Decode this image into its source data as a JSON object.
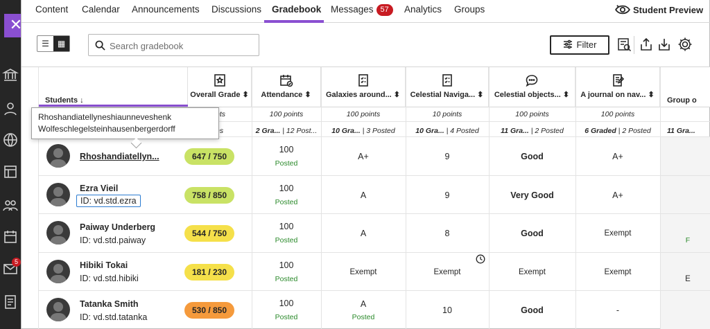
{
  "nav": {
    "tabs": [
      {
        "label": "Content"
      },
      {
        "label": "Calendar"
      },
      {
        "label": "Announcements"
      },
      {
        "label": "Discussions"
      },
      {
        "label": "Gradebook"
      },
      {
        "label": "Messages",
        "badge": "57"
      },
      {
        "label": "Analytics"
      },
      {
        "label": "Groups"
      }
    ],
    "student_preview": "Student Preview"
  },
  "rail": {
    "mail_badge": "5"
  },
  "toolbar": {
    "search_placeholder": "Search gradebook",
    "filter_label": "Filter"
  },
  "columns": [
    {
      "label": "Students ↓",
      "icon": "none"
    },
    {
      "label": "Overall Grade ⬍",
      "icon": "overall-grade-icon",
      "points": "points",
      "stats": "items"
    },
    {
      "label": "Attendance ⬍",
      "icon": "attendance-calendar-icon",
      "points": "100 points",
      "stats_a": "2 Gra...",
      "stats_b": "| 12 Post..."
    },
    {
      "label": "Galaxies around... ⬍",
      "icon": "assignment-icon",
      "points": "100 points",
      "stats_a": "10 Gra...",
      "stats_b": "| 3 Posted"
    },
    {
      "label": "Celestial Naviga... ⬍",
      "icon": "assignment-icon",
      "points": "10 points",
      "stats_a": "10 Gra...",
      "stats_b": "| 4 Posted"
    },
    {
      "label": "Celestial objects... ⬍",
      "icon": "discussion-icon",
      "points": "100 points",
      "stats_a": "11 Gra...",
      "stats_b": "| 2 Posted"
    },
    {
      "label": "A journal on nav... ⬍",
      "icon": "journal-icon",
      "points": "100 points",
      "stats_a": "6 Graded",
      "stats_b": "| 2 Posted"
    },
    {
      "label": "Group o",
      "icon": "none",
      "points": "",
      "stats_a": "11 Gra...",
      "stats_b": ""
    }
  ],
  "tooltip": {
    "line1": "Rhoshandiatellyneshiaunneveshenk",
    "line2": "Wolfeschlegelsteinhausenbergerdorff"
  },
  "students": [
    {
      "name": "Rhoshandiatellyn...",
      "id": "",
      "overall": "647 / 750",
      "overall_color": "#c9e265",
      "attendance": "100",
      "att_status": "Posted",
      "galaxies": "A+",
      "galaxies_status": "",
      "celestial_nav": "9",
      "celestial_obj": "Good",
      "journal": "A+",
      "group": ""
    },
    {
      "name": "Ezra Vieil",
      "id": "ID: vd.std.ezra",
      "overall": "758 / 850",
      "overall_color": "#c9e265",
      "attendance": "100",
      "att_status": "Posted",
      "galaxies": "A",
      "galaxies_status": "",
      "celestial_nav": "9",
      "celestial_obj": "Very Good",
      "journal": "A+",
      "group": ""
    },
    {
      "name": "Paiway Underberg",
      "id": "ID: vd.std.paiway",
      "overall": "544 / 750",
      "overall_color": "#f5e04a",
      "attendance": "100",
      "att_status": "Posted",
      "galaxies": "A",
      "galaxies_status": "",
      "celestial_nav": "8",
      "celestial_obj": "Good",
      "journal": "Exempt",
      "group": "F"
    },
    {
      "name": "Hibiki Tokai",
      "id": "ID: vd.std.hibiki",
      "overall": "181 / 230",
      "overall_color": "#f5e04a",
      "attendance": "100",
      "att_status": "Posted",
      "galaxies": "Exempt",
      "galaxies_status": "",
      "celestial_nav": "Exempt",
      "celestial_obj": "Exempt",
      "journal": "Exempt",
      "group": "E"
    },
    {
      "name": "Tatanka Smith",
      "id": "ID: vd.std.tatanka",
      "overall": "530 / 850",
      "overall_color": "#f59a3c",
      "attendance": "100",
      "att_status": "Posted",
      "galaxies": "A",
      "galaxies_status": "Posted",
      "celestial_nav": "10",
      "celestial_obj": "Good",
      "journal": "-",
      "group": ""
    }
  ]
}
